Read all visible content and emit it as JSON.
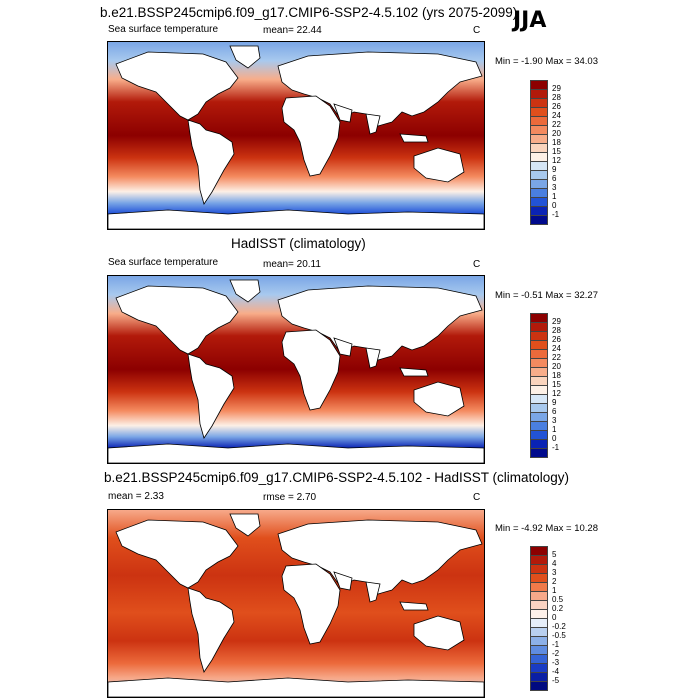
{
  "season": "JJA",
  "panels": [
    {
      "title": "b.e21.BSSP245cmip6.f09_g17.CMIP6-SSP2-4.5.102 (yrs 2075-2099)",
      "left_label": "Sea surface temperature",
      "stat_label": "mean=  22.44",
      "unit": "C",
      "minmax": "Min =  -1.90 Max =  34.03",
      "colorbar": {
        "labels": [
          "29",
          "28",
          "26",
          "24",
          "22",
          "20",
          "18",
          "15",
          "12",
          "9",
          "6",
          "3",
          "1",
          "0",
          "-1"
        ],
        "colors": [
          "#8c0000",
          "#b21a0a",
          "#cc3311",
          "#e04f1c",
          "#ec6a3b",
          "#f48a5f",
          "#f8ad8a",
          "#fad4bd",
          "#fdf0e6",
          "#d6e6f6",
          "#a8c9ee",
          "#7aa6e6",
          "#4a7fe0",
          "#2253d6",
          "#0a23b4",
          "#000a8c"
        ]
      },
      "polar_color": "#1e4fd8"
    },
    {
      "title": "HadISST (climatology)",
      "left_label": "Sea surface temperature",
      "stat_label": "mean=  20.11",
      "unit": "C",
      "minmax": "Min =  -0.51 Max =  32.27",
      "colorbar": {
        "labels": [
          "29",
          "28",
          "26",
          "24",
          "22",
          "20",
          "18",
          "15",
          "12",
          "9",
          "6",
          "3",
          "1",
          "0",
          "-1"
        ],
        "colors": [
          "#8c0000",
          "#b21a0a",
          "#cc3311",
          "#e04f1c",
          "#ec6a3b",
          "#f48a5f",
          "#f8ad8a",
          "#fad4bd",
          "#fdf0e6",
          "#d6e6f6",
          "#a8c9ee",
          "#7aa6e6",
          "#4a7fe0",
          "#2253d6",
          "#0a23b4",
          "#000a8c"
        ]
      },
      "polar_color": "#0a23b4"
    },
    {
      "title": "b.e21.BSSP245cmip6.f09_g17.CMIP6-SSP2-4.5.102 - HadISST (climatology)",
      "left_label": "mean =   2.33",
      "stat_label": "rmse =   2.70",
      "unit": "C",
      "minmax": "Min =  -4.92 Max =  10.28",
      "colorbar": {
        "labels": [
          "5",
          "4",
          "3",
          "2",
          "1",
          "0.5",
          "0.2",
          "0",
          "-0.2",
          "-0.5",
          "-1",
          "-2",
          "-3",
          "-4",
          "-5"
        ],
        "colors": [
          "#8c0000",
          "#b21a0a",
          "#cc3311",
          "#e04f1c",
          "#f07a4a",
          "#f7a98a",
          "#fbd3c2",
          "#fdf0e9",
          "#e6eef9",
          "#b9d0f0",
          "#8cb0e8",
          "#5f8ce0",
          "#3564d6",
          "#1a3cc4",
          "#0a1fa4",
          "#000a80"
        ]
      },
      "polar_color": "#f7a98a"
    }
  ]
}
